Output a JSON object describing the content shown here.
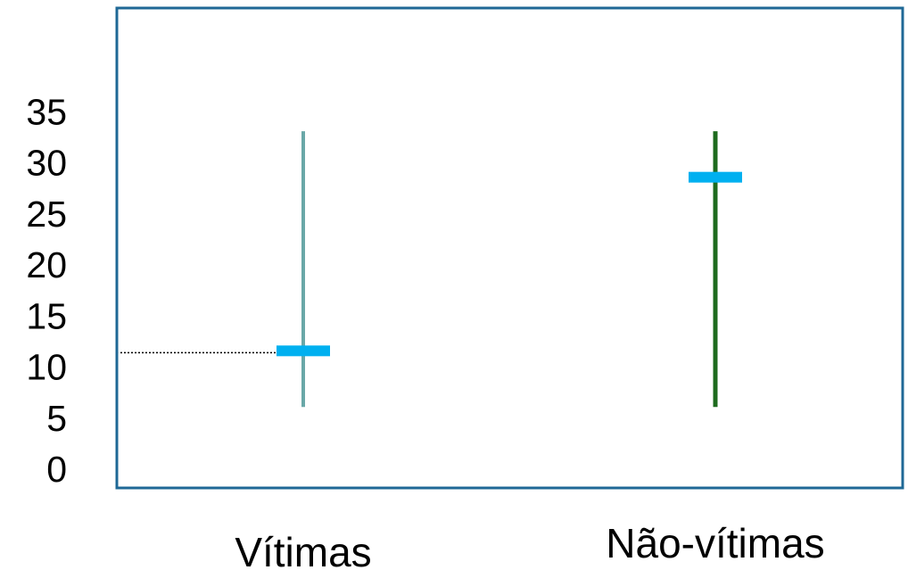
{
  "chart_data": {
    "type": "range",
    "categories": [
      "Vítimas",
      "Não-vítimas"
    ],
    "yticks": [
      "0",
      "5",
      "10",
      "15",
      "20",
      "25",
      "30",
      "35"
    ],
    "ylim": [
      0,
      35
    ],
    "series": [
      {
        "category": "Vítimas",
        "min": 6,
        "max": 33,
        "mean": 11.5,
        "color": "#6aa8a8"
      },
      {
        "category": "Não-vítimas",
        "min": 6,
        "max": 33,
        "mean": 28.5,
        "color": "#1e6b1e"
      }
    ],
    "mean_marker_color": "#00b0f0",
    "frame_color": "#1f6896",
    "reference_line": {
      "y": 11.5,
      "style": "dotted",
      "color": "#000000"
    },
    "grid": false,
    "legend": "none"
  }
}
